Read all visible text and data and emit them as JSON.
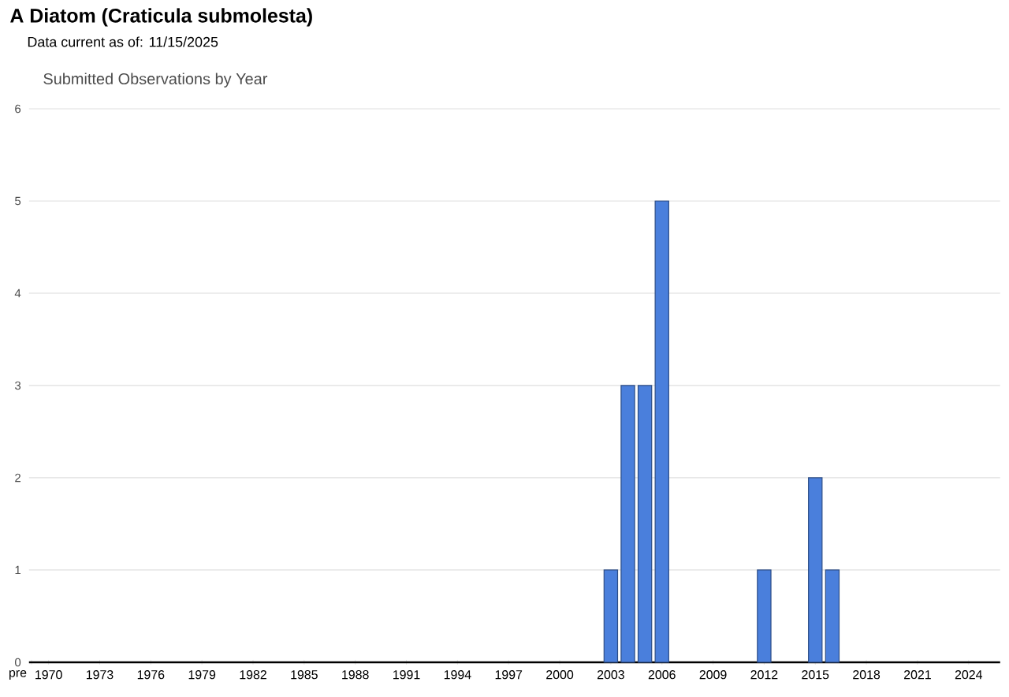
{
  "chart_data": {
    "type": "bar",
    "title": "A Diatom   (Craticula submolesta)",
    "subtitle": "Data current as of: 11/15/2025",
    "annotations": [
      "Submitted Observations by Year"
    ],
    "categories": [
      "pre",
      "1970",
      null,
      null,
      "1973",
      null,
      null,
      "1976",
      null,
      null,
      "1979",
      null,
      null,
      "1982",
      null,
      null,
      "1985",
      null,
      null,
      "1988",
      null,
      null,
      "1991",
      null,
      null,
      "1994",
      null,
      null,
      "1997",
      null,
      null,
      "2000",
      null,
      null,
      "2003",
      null,
      null,
      "2006",
      null,
      null,
      "2009",
      null,
      null,
      "2012",
      null,
      null,
      "2015",
      null,
      null,
      "2018",
      null,
      null,
      "2021",
      null,
      null,
      "2024",
      null
    ],
    "values": [
      0,
      0,
      0,
      0,
      0,
      0,
      0,
      0,
      0,
      0,
      0,
      0,
      0,
      0,
      0,
      0,
      0,
      0,
      0,
      0,
      0,
      0,
      0,
      0,
      0,
      0,
      0,
      0,
      0,
      0,
      0,
      0,
      0,
      0,
      1,
      3,
      3,
      5,
      0,
      0,
      0,
      0,
      0,
      1,
      0,
      0,
      2,
      1,
      0,
      0,
      0,
      0,
      0,
      0,
      0,
      0,
      0
    ],
    "color": "#4a7fdc",
    "ylim": [
      0,
      6
    ],
    "yticks": [
      0,
      1,
      2,
      3,
      4,
      5,
      6
    ],
    "grid": "y"
  }
}
